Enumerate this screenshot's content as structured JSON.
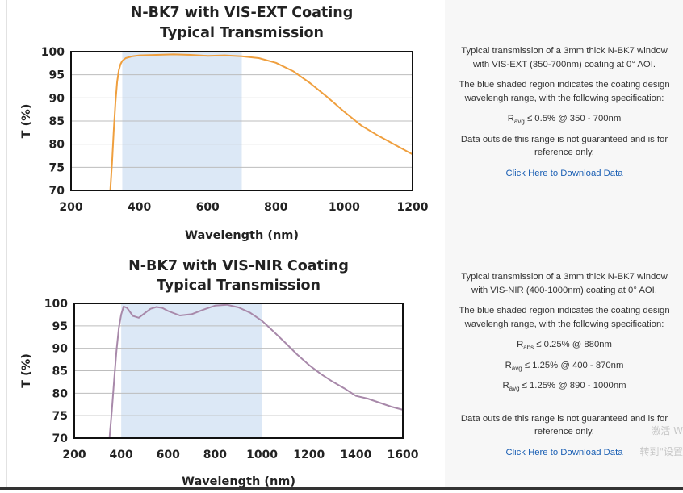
{
  "panels": [
    {
      "description": [
        "Typical transmission of a 3mm thick N-BK7 window with VIS-EXT (350-700nm) coating at 0° AOI.",
        "The blue shaded region indicates the coating design wavelengh range, with the following specification:"
      ],
      "specs": [
        {
          "main": "R",
          "sub": "avg",
          "rest": " ≤ 0.5% @ 350 - 700nm"
        }
      ],
      "note": "Data outside this range is not guaranteed and is for reference only.",
      "link": "Click Here to Download Data"
    },
    {
      "description": [
        "Typical transmission of a 3mm thick N-BK7 window with VIS-NIR (400-1000nm) coating at 0° AOI.",
        "The blue shaded region indicates the coating design wavelengh range, with the following specification:"
      ],
      "specs": [
        {
          "main": "R",
          "sub": "abs",
          "rest": " ≤ 0.25% @ 880nm"
        },
        {
          "main": "R",
          "sub": "avg",
          "rest": " ≤ 1.25% @ 400 - 870nm"
        },
        {
          "main": "R",
          "sub": "avg",
          "rest": " ≤ 1.25% @ 890 - 1000nm"
        }
      ],
      "note": "Data outside this range is not guaranteed and is for reference only.",
      "link": "Click Here to Download Data"
    }
  ],
  "watermark": [
    "激活 W",
    "转到\"设置"
  ],
  "colors": {
    "shade": "#dce8f6",
    "line1": "#ef9f3e",
    "line2": "#a889aa",
    "link": "#1a5fb4"
  },
  "chart_data": [
    {
      "type": "line",
      "title": [
        "N-BK7 with VIS-EXT Coating",
        "Typical Transmission"
      ],
      "xlabel": "Wavelength (nm)",
      "ylabel": "T (%)",
      "xlim": [
        200,
        1200
      ],
      "ylim": [
        70,
        100
      ],
      "xticks": [
        200,
        400,
        600,
        800,
        1000,
        1200
      ],
      "yticks": [
        70,
        75,
        80,
        85,
        90,
        95,
        100
      ],
      "shaded_region": [
        350,
        700
      ],
      "grid": "horizontal",
      "series": [
        {
          "color": "#ef9f3e",
          "x": [
            315,
            320,
            325,
            330,
            335,
            340,
            345,
            350,
            360,
            380,
            400,
            450,
            500,
            550,
            600,
            650,
            700,
            750,
            800,
            850,
            900,
            950,
            1000,
            1050,
            1100,
            1150,
            1200
          ],
          "y": [
            70,
            76,
            83,
            89,
            93.5,
            96,
            97.3,
            98,
            98.6,
            99,
            99.2,
            99.3,
            99.4,
            99.3,
            99.1,
            99.2,
            99,
            98.6,
            97.6,
            95.8,
            93.2,
            90.2,
            87,
            84,
            81.8,
            79.8,
            77.8
          ]
        }
      ]
    },
    {
      "type": "line",
      "title": [
        "N-BK7 with VIS-NIR Coating",
        "Typical Transmission"
      ],
      "xlabel": "Wavelength (nm)",
      "ylabel": "T (%)",
      "xlim": [
        200,
        1600
      ],
      "ylim": [
        70,
        100
      ],
      "xticks": [
        200,
        400,
        600,
        800,
        1000,
        1200,
        1400,
        1600
      ],
      "yticks": [
        70,
        75,
        80,
        85,
        90,
        95,
        100
      ],
      "shaded_region": [
        400,
        1000
      ],
      "grid": "horizontal",
      "series": [
        {
          "color": "#a889aa",
          "x": [
            350,
            360,
            370,
            380,
            390,
            400,
            410,
            425,
            450,
            475,
            500,
            525,
            550,
            575,
            600,
            650,
            700,
            750,
            800,
            850,
            900,
            950,
            1000,
            1050,
            1100,
            1150,
            1200,
            1250,
            1300,
            1350,
            1400,
            1450,
            1500,
            1550,
            1600
          ],
          "y": [
            70,
            76,
            83,
            89.5,
            94.5,
            97.5,
            99.3,
            99,
            97.2,
            96.8,
            97.8,
            98.8,
            99.2,
            99,
            98.3,
            97.3,
            97.6,
            98.6,
            99.5,
            99.7,
            99.1,
            97.9,
            96.1,
            93.7,
            91.2,
            88.6,
            86.3,
            84.3,
            82.6,
            81.1,
            79.4,
            78.8,
            77.9,
            77,
            76.3
          ]
        }
      ]
    }
  ]
}
